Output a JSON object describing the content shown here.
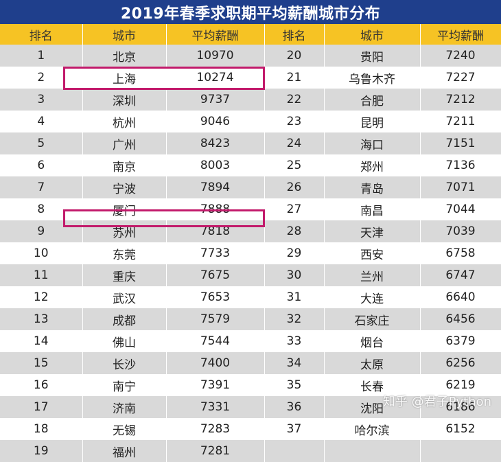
{
  "title": "2019年春季求职期平均薪酬城市分布",
  "headers": {
    "rank": "排名",
    "city": "城市",
    "salary": "平均薪酬"
  },
  "left_rows": [
    {
      "rank": "1",
      "city": "北京",
      "salary": "10970"
    },
    {
      "rank": "2",
      "city": "上海",
      "salary": "10274"
    },
    {
      "rank": "3",
      "city": "深圳",
      "salary": "9737"
    },
    {
      "rank": "4",
      "city": "杭州",
      "salary": "9046"
    },
    {
      "rank": "5",
      "city": "广州",
      "salary": "8423"
    },
    {
      "rank": "6",
      "city": "南京",
      "salary": "8003"
    },
    {
      "rank": "7",
      "city": "宁波",
      "salary": "7894"
    },
    {
      "rank": "8",
      "city": "厦门",
      "salary": "7888"
    },
    {
      "rank": "9",
      "city": "苏州",
      "salary": "7818"
    },
    {
      "rank": "10",
      "city": "东莞",
      "salary": "7733"
    },
    {
      "rank": "11",
      "city": "重庆",
      "salary": "7675"
    },
    {
      "rank": "12",
      "city": "武汉",
      "salary": "7653"
    },
    {
      "rank": "13",
      "city": "成都",
      "salary": "7579"
    },
    {
      "rank": "14",
      "city": "佛山",
      "salary": "7544"
    },
    {
      "rank": "15",
      "city": "长沙",
      "salary": "7400"
    },
    {
      "rank": "16",
      "city": "南宁",
      "salary": "7391"
    },
    {
      "rank": "17",
      "city": "济南",
      "salary": "7331"
    },
    {
      "rank": "18",
      "city": "无锡",
      "salary": "7283"
    },
    {
      "rank": "19",
      "city": "福州",
      "salary": "7281"
    }
  ],
  "right_rows": [
    {
      "rank": "20",
      "city": "贵阳",
      "salary": "7240"
    },
    {
      "rank": "21",
      "city": "乌鲁木齐",
      "salary": "7227"
    },
    {
      "rank": "22",
      "city": "合肥",
      "salary": "7212"
    },
    {
      "rank": "23",
      "city": "昆明",
      "salary": "7211"
    },
    {
      "rank": "24",
      "city": "海口",
      "salary": "7151"
    },
    {
      "rank": "25",
      "city": "郑州",
      "salary": "7136"
    },
    {
      "rank": "26",
      "city": "青岛",
      "salary": "7071"
    },
    {
      "rank": "27",
      "city": "南昌",
      "salary": "7044"
    },
    {
      "rank": "28",
      "city": "天津",
      "salary": "7039"
    },
    {
      "rank": "29",
      "city": "西安",
      "salary": "6758"
    },
    {
      "rank": "30",
      "city": "兰州",
      "salary": "6747"
    },
    {
      "rank": "31",
      "city": "大连",
      "salary": "6640"
    },
    {
      "rank": "32",
      "city": "石家庄",
      "salary": "6456"
    },
    {
      "rank": "33",
      "city": "烟台",
      "salary": "6379"
    },
    {
      "rank": "34",
      "city": "太原",
      "salary": "6256"
    },
    {
      "rank": "35",
      "city": "长春",
      "salary": "6219"
    },
    {
      "rank": "36",
      "city": "沈阳",
      "salary": "6186"
    },
    {
      "rank": "37",
      "city": "哈尔滨",
      "salary": "6152"
    }
  ],
  "highlighted_cities": [
    "上海",
    "苏州"
  ],
  "colors": {
    "title_bg": "#1f3f8c",
    "header_bg": "#f6c324",
    "stripe": "#d9d9d9",
    "highlight": "#c21a6b"
  },
  "watermark": "知乎 @君子Python"
}
